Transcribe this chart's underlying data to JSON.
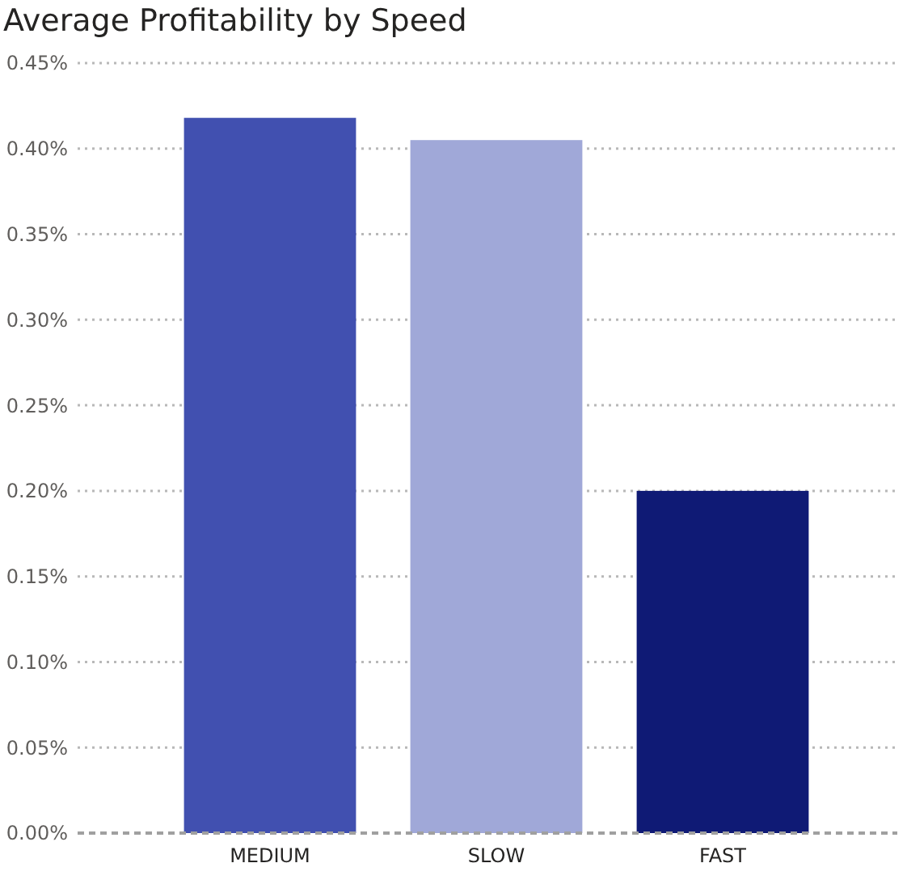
{
  "chart_data": {
    "type": "bar",
    "title": "Average Profitability by Speed",
    "categories": [
      "MEDIUM",
      "SLOW",
      "FAST"
    ],
    "values": [
      0.418,
      0.405,
      0.2
    ],
    "colors": [
      "#4150b0",
      "#a0a8d8",
      "#0f1a75"
    ],
    "ylim": [
      0,
      0.45
    ],
    "yticks": [
      {
        "value": 0,
        "label": "0.00%"
      },
      {
        "value": 0.05,
        "label": "0.05%"
      },
      {
        "value": 0.1,
        "label": "0.10%"
      },
      {
        "value": 0.15,
        "label": "0.15%"
      },
      {
        "value": 0.2,
        "label": "0.20%"
      },
      {
        "value": 0.25,
        "label": "0.25%"
      },
      {
        "value": 0.3,
        "label": "0.30%"
      },
      {
        "value": 0.35,
        "label": "0.35%"
      },
      {
        "value": 0.4,
        "label": "0.40%"
      },
      {
        "value": 0.45,
        "label": "0.45%"
      }
    ],
    "grid": "y"
  }
}
